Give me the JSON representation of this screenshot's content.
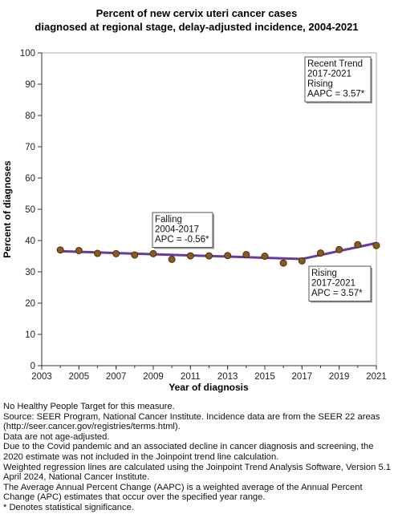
{
  "chart_data": {
    "type": "line",
    "title": "Percent of new cervix uteri cancer cases",
    "subtitle": "diagnosed at regional stage, delay-adjusted incidence, 2004-2021",
    "xlabel": "Year of diagnosis",
    "ylabel": "Percent of diagnoses",
    "xlim": [
      2003,
      2021
    ],
    "ylim": [
      0,
      100
    ],
    "x_ticks": [
      "2003",
      "2005",
      "2007",
      "2009",
      "2011",
      "2013",
      "2015",
      "2017",
      "2019",
      "2021"
    ],
    "y_ticks": [
      "0",
      "10",
      "20",
      "30",
      "40",
      "50",
      "60",
      "70",
      "80",
      "90",
      "100"
    ],
    "grid": false,
    "colors": {
      "trend_line": "#6a3aa3",
      "points": "#8b5a1e",
      "point_outline": "#4a2e0a"
    },
    "series": [
      {
        "name": "Observed",
        "x": [
          2004,
          2005,
          2006,
          2007,
          2008,
          2009,
          2010,
          2011,
          2012,
          2013,
          2014,
          2015,
          2016,
          2017,
          2018,
          2019,
          2020,
          2021
        ],
        "y": [
          37.0,
          36.8,
          35.9,
          35.8,
          35.4,
          35.8,
          34.0,
          35.1,
          35.1,
          35.2,
          35.5,
          35.0,
          32.8,
          33.5,
          36.0,
          37.1,
          38.7,
          38.4
        ]
      },
      {
        "name": "Trend",
        "x": [
          2004,
          2017,
          2021
        ],
        "y": [
          36.6,
          34.1,
          39.2
        ]
      }
    ],
    "annotations": [
      {
        "lines": [
          "Recent Trend",
          "2017-2021",
          "Rising",
          "AAPC =  3.57*"
        ]
      },
      {
        "lines": [
          "Falling",
          "2004-2017",
          "APC = -0.56*"
        ]
      },
      {
        "lines": [
          "Rising",
          "2017-2021",
          "APC =  3.57*"
        ]
      }
    ]
  },
  "footnotes": [
    "No Healthy People Target for this measure.",
    "Source: SEER Program, National Cancer Institute. Incidence data are from the SEER 22 areas (http://seer.cancer.gov/registries/terms.html).",
    "Data are not age-adjusted.",
    "Due to the Covid pandemic and an associated decline in cancer diagnosis and screening, the 2020 estimate was not included in the Joinpoint trend line calculation.",
    "Weighted regression lines are calculated using the Joinpoint Trend Analysis Software, Version 5.1 April 2024, National Cancer Institute.",
    "The Average Annual Percent Change (AAPC) is a weighted average of the Annual Percent Change (APC) estimates that occur over the specified year range.",
    "* Denotes statistical significance."
  ]
}
